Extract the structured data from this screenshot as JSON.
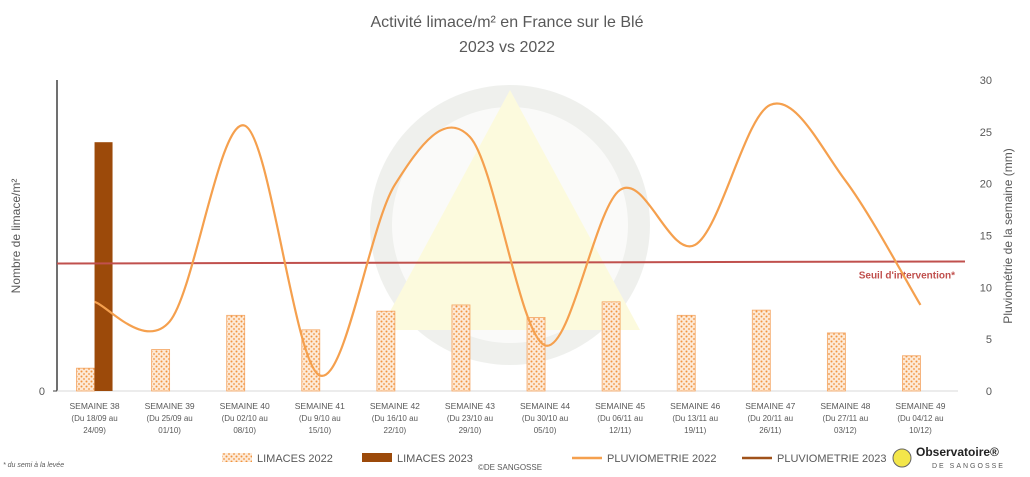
{
  "chart_data": {
    "type": "bar",
    "title": "Activité limace/m² en France sur le Blé",
    "subtitle": "2023 vs 2022",
    "ylabel": "Nombre de limace/m²",
    "y2label": "Pluviométrie de la semaine (mm)",
    "categories": [
      [
        "SEMAINE 38",
        "(Du 18/09 au",
        "24/09)"
      ],
      [
        "SEMAINE 39",
        "(Du 25/09 au",
        "01/10)"
      ],
      [
        "SEMAINE 40",
        "(Du 02/10 au",
        "08/10)"
      ],
      [
        "SEMAINE 41",
        "(Du 9/10 au",
        "15/10)"
      ],
      [
        "SEMAINE 42",
        "(Du 16/10 au",
        "22/10)"
      ],
      [
        "SEMAINE 43",
        "(Du 23/10 au",
        "29/10)"
      ],
      [
        "SEMAINE 44",
        "(Du 30/10 au",
        "05/10)"
      ],
      [
        "SEMAINE 45",
        "(Du 06/11 au",
        "12/11)"
      ],
      [
        "SEMAINE 46",
        "(Du 13/11 au",
        "19/11)"
      ],
      [
        "SEMAINE 47",
        "(Du 20/11 au",
        "26/11)"
      ],
      [
        "SEMAINE 48",
        "(Du 27/11 au",
        "03/12)"
      ],
      [
        "SEMAINE 49",
        "(Du 04/12 au",
        "10/12)"
      ]
    ],
    "series": [
      {
        "name": "LIMACES 2022",
        "type": "bar",
        "color": "#f4a460",
        "values": [
          2.2,
          4.0,
          7.3,
          5.9,
          7.7,
          8.3,
          7.1,
          8.6,
          7.3,
          7.8,
          5.6,
          3.4
        ]
      },
      {
        "name": "LIMACES 2023",
        "type": "bar",
        "color": "#9c4a0a",
        "values": [
          24.0,
          null,
          null,
          null,
          null,
          null,
          null,
          null,
          null,
          null,
          null,
          null
        ]
      },
      {
        "name": "PLUVIOMETRIE 2022",
        "type": "line",
        "axis": "y2",
        "color": "#f5a04e",
        "values": [
          8.6,
          6.7,
          25.6,
          1.5,
          19.9,
          24.5,
          4.4,
          19.4,
          14.1,
          27.6,
          20.3,
          8.3
        ]
      },
      {
        "name": "PLUVIOMETRIE 2023",
        "type": "line",
        "axis": "y2",
        "color": "#a0521a",
        "values": [
          null,
          null,
          null,
          null,
          null,
          null,
          null,
          null,
          null,
          null,
          null,
          null
        ]
      }
    ],
    "threshold": {
      "value": 12.3,
      "label": "Seuil d'intervention*",
      "color": "#c0504d"
    },
    "ylim": [
      0,
      30
    ],
    "yticks": [
      0
    ],
    "y2lim": [
      0,
      30
    ],
    "y2ticks": [
      0,
      5,
      10,
      15,
      20,
      25,
      30
    ],
    "footnote": "* du semi à la levée",
    "credit": "©DE SANGOSSE",
    "logo": {
      "name": "Observatoire®",
      "sub": "DE SANGOSSE"
    }
  }
}
